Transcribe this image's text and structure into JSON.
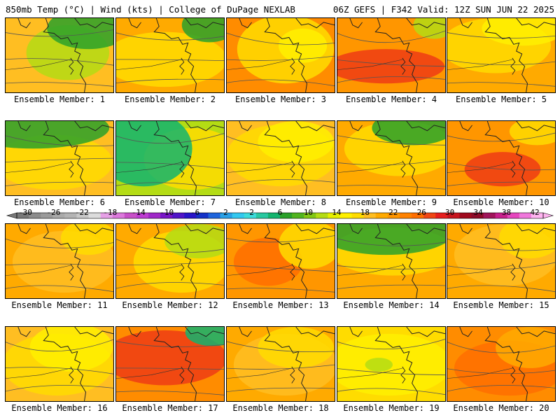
{
  "header": {
    "left": "850mb Temp (°C) | Wind (kts) | College of DuPage NEXLAB",
    "right": "06Z GEFS | F342 Valid: 12Z SUN JUN 22 2025"
  },
  "panels": [
    {
      "label": "Ensemble Member: 1",
      "base": "#ffbe22",
      "blobs": [
        {
          "c": "#b4dc14"
        },
        {
          "c": "#2aa12a"
        }
      ]
    },
    {
      "label": "Ensemble Member: 2",
      "base": "#ffaa00",
      "blobs": [
        {
          "c": "#ffdc00"
        },
        {
          "c": "#2aa12a"
        }
      ]
    },
    {
      "label": "Ensemble Member: 3",
      "base": "#ff8c00",
      "blobs": [
        {
          "c": "#ffdc00"
        },
        {
          "c": "#fff000"
        }
      ]
    },
    {
      "label": "Ensemble Member: 4",
      "base": "#ff9600",
      "blobs": [
        {
          "c": "#ee3c14"
        },
        {
          "c": "#b4dc14"
        }
      ]
    },
    {
      "label": "Ensemble Member: 5",
      "base": "#ffaa00",
      "blobs": [
        {
          "c": "#ffdc00"
        },
        {
          "c": "#fff000"
        }
      ]
    },
    {
      "label": "Ensemble Member: 6",
      "base": "#ffbe22",
      "blobs": [
        {
          "c": "#ffdc00"
        },
        {
          "c": "#2aa12a"
        }
      ]
    },
    {
      "label": "Ensemble Member: 7",
      "base": "#b4dc14",
      "blobs": [
        {
          "c": "#ffdc00"
        },
        {
          "c": "#12b46e"
        }
      ]
    },
    {
      "label": "Ensemble Member: 8",
      "base": "#ffbe22",
      "blobs": [
        {
          "c": "#ffdc00"
        },
        {
          "c": "#fff000"
        }
      ]
    },
    {
      "label": "Ensemble Member: 9",
      "base": "#ffaa00",
      "blobs": [
        {
          "c": "#ffdc00"
        },
        {
          "c": "#2aa12a"
        }
      ]
    },
    {
      "label": "Ensemble Member: 10",
      "base": "#ff9600",
      "blobs": [
        {
          "c": "#ee3c14"
        },
        {
          "c": "#ffdc00"
        }
      ]
    },
    {
      "label": "Ensemble Member: 11",
      "base": "#ffaa00",
      "blobs": [
        {
          "c": "#ffbe22"
        },
        {
          "c": "#ffdc00"
        }
      ]
    },
    {
      "label": "Ensemble Member: 12",
      "base": "#ffaa00",
      "blobs": [
        {
          "c": "#ffdc00"
        },
        {
          "c": "#b4dc14"
        }
      ]
    },
    {
      "label": "Ensemble Member: 13",
      "base": "#ff9600",
      "blobs": [
        {
          "c": "#ff6e00"
        },
        {
          "c": "#ffdc00"
        }
      ]
    },
    {
      "label": "Ensemble Member: 14",
      "base": "#ffaa00",
      "blobs": [
        {
          "c": "#ffdc00"
        },
        {
          "c": "#2aa12a"
        }
      ]
    },
    {
      "label": "Ensemble Member: 15",
      "base": "#ffaa00",
      "blobs": [
        {
          "c": "#ffbe22"
        },
        {
          "c": "#ffdc00"
        }
      ]
    },
    {
      "label": "Ensemble Member: 16",
      "base": "#ffbe22",
      "blobs": [
        {
          "c": "#ffdc00"
        },
        {
          "c": "#fff000"
        }
      ]
    },
    {
      "label": "Ensemble Member: 17",
      "base": "#ff8c00",
      "blobs": [
        {
          "c": "#ee3c14"
        },
        {
          "c": "#12b46e"
        }
      ]
    },
    {
      "label": "Ensemble Member: 18",
      "base": "#ffaa00",
      "blobs": [
        {
          "c": "#ffbe22"
        },
        {
          "c": "#ffdc00"
        }
      ]
    },
    {
      "label": "Ensemble Member: 19",
      "base": "#ffdc00",
      "blobs": [
        {
          "c": "#fff000"
        },
        {
          "c": "#b4dc14"
        }
      ]
    },
    {
      "label": "Ensemble Member: 20",
      "base": "#ff8c00",
      "blobs": [
        {
          "c": "#ff6e00"
        },
        {
          "c": "#ffaa00"
        }
      ]
    }
  ],
  "colorbar": {
    "tick_labels": [
      "-30",
      "-26",
      "-22",
      "-18",
      "-14",
      "-10",
      "-6",
      "-2",
      "2",
      "6",
      "10",
      "14",
      "18",
      "22",
      "26",
      "30",
      "34",
      "38",
      "42"
    ],
    "colors": [
      "#787878",
      "#8c8c8c",
      "#9b9b9b",
      "#aaaaaa",
      "#b4b4b4",
      "#c8c8c8",
      "#dcdcdc",
      "#e6a0e6",
      "#dc78dc",
      "#c850c8",
      "#be3cd2",
      "#a028c8",
      "#7814c8",
      "#5014c8",
      "#2814c8",
      "#1432c8",
      "#1e64dc",
      "#28a0e6",
      "#32c8f0",
      "#3cdcdc",
      "#28c8a0",
      "#14b46e",
      "#2aa12a",
      "#50b41e",
      "#82c814",
      "#b4dc14",
      "#e6f000",
      "#fff000",
      "#ffdc00",
      "#ffbe22",
      "#ffaa00",
      "#ff9600",
      "#ff8200",
      "#ff6e00",
      "#f04614",
      "#e61e1e",
      "#c8141e",
      "#a00a1e",
      "#8c0a28",
      "#a0145a",
      "#c81e8c",
      "#e646be",
      "#f078dc",
      "#ffb4f0"
    ]
  }
}
